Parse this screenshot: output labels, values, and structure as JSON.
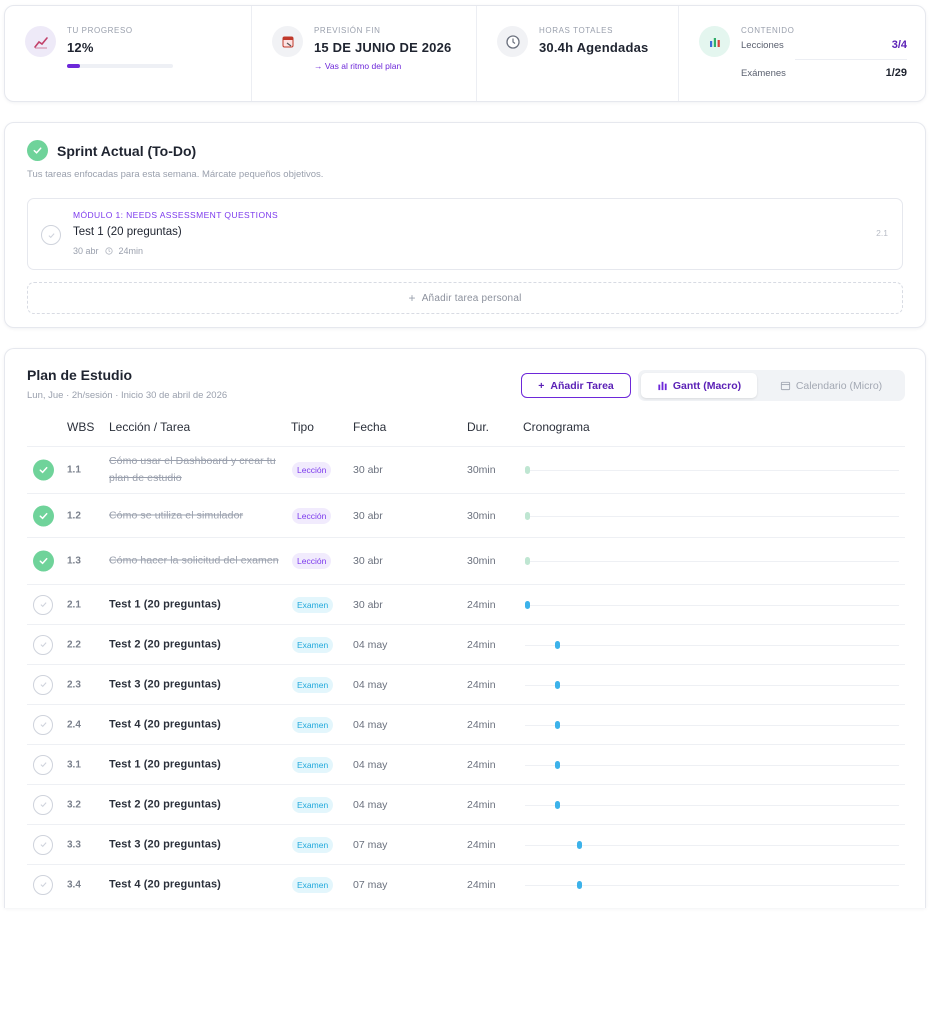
{
  "stats": {
    "progress": {
      "label": "TU PROGRESO",
      "value": "12%",
      "fraction": 0.12,
      "icon": "trend-chart-icon",
      "color": "#6d28d9"
    },
    "forecast": {
      "label": "PREVISIÓN FIN",
      "value": "15 DE JUNIO DE 2026",
      "link": "→ Vas al ritmo del plan",
      "icon": "calendar-icon"
    },
    "hours": {
      "label": "HORAS TOTALES",
      "value": "30.4h Agendadas",
      "icon": "clock-icon"
    },
    "content": {
      "label": "CONTENIDO",
      "icon": "bar-chart-icon",
      "rows": [
        {
          "label": "Lecciones",
          "value": "3/4"
        },
        {
          "label": "Exámenes",
          "value": "1/29"
        }
      ]
    }
  },
  "sprint": {
    "title": "Sprint Actual (To-Do)",
    "subtitle": "Tus tareas enfocadas para esta semana. Márcate pequeños objetivos.",
    "task": {
      "module": "MÓDULO 1: NEEDS ASSESSMENT QUESTIONS",
      "name": "Test 1 (20 preguntas)",
      "date": "30 abr",
      "duration": "24min",
      "wbs": "2.1"
    },
    "add_personal": "Añadir tarea personal"
  },
  "plan": {
    "title": "Plan de Estudio",
    "subtitle": "Lun, Jue · 2h/sesión · Inicio 30 de abril de 2026",
    "add_task": "Añadir Tarea",
    "view_gantt": "Gantt (Macro)",
    "view_calendar": "Calendario (Micro)",
    "columns": {
      "wbs": "WBS",
      "lesson": "Lección / Tarea",
      "type": "Tipo",
      "date": "Fecha",
      "duration": "Dur.",
      "schedule": "Cronograma"
    },
    "rows": [
      {
        "wbs": "1.1",
        "name": "Cómo usar el Dashboard y crear tu plan de estudio",
        "type": "Lección",
        "date": "30 abr",
        "duration": "30min",
        "done": true,
        "day_offset": 0
      },
      {
        "wbs": "1.2",
        "name": "Cómo se utiliza el simulador",
        "type": "Lección",
        "date": "30 abr",
        "duration": "30min",
        "done": true,
        "day_offset": 0
      },
      {
        "wbs": "1.3",
        "name": "Cómo hacer la solicitud del examen",
        "type": "Lección",
        "date": "30 abr",
        "duration": "30min",
        "done": true,
        "day_offset": 0
      },
      {
        "wbs": "2.1",
        "name": "Test 1 (20 preguntas)",
        "type": "Examen",
        "date": "30 abr",
        "duration": "24min",
        "done": false,
        "day_offset": 0
      },
      {
        "wbs": "2.2",
        "name": "Test 2 (20 preguntas)",
        "type": "Examen",
        "date": "04 may",
        "duration": "24min",
        "done": false,
        "day_offset": 4
      },
      {
        "wbs": "2.3",
        "name": "Test 3 (20 preguntas)",
        "type": "Examen",
        "date": "04 may",
        "duration": "24min",
        "done": false,
        "day_offset": 4
      },
      {
        "wbs": "2.4",
        "name": "Test 4 (20 preguntas)",
        "type": "Examen",
        "date": "04 may",
        "duration": "24min",
        "done": false,
        "day_offset": 4
      },
      {
        "wbs": "3.1",
        "name": "Test 1 (20 preguntas)",
        "type": "Examen",
        "date": "04 may",
        "duration": "24min",
        "done": false,
        "day_offset": 4
      },
      {
        "wbs": "3.2",
        "name": "Test 2 (20 preguntas)",
        "type": "Examen",
        "date": "04 may",
        "duration": "24min",
        "done": false,
        "day_offset": 4
      },
      {
        "wbs": "3.3",
        "name": "Test 3 (20 preguntas)",
        "type": "Examen",
        "date": "07 may",
        "duration": "24min",
        "done": false,
        "day_offset": 7
      },
      {
        "wbs": "3.4",
        "name": "Test 4 (20 preguntas)",
        "type": "Examen",
        "date": "07 may",
        "duration": "24min",
        "done": false,
        "day_offset": 7
      }
    ]
  }
}
